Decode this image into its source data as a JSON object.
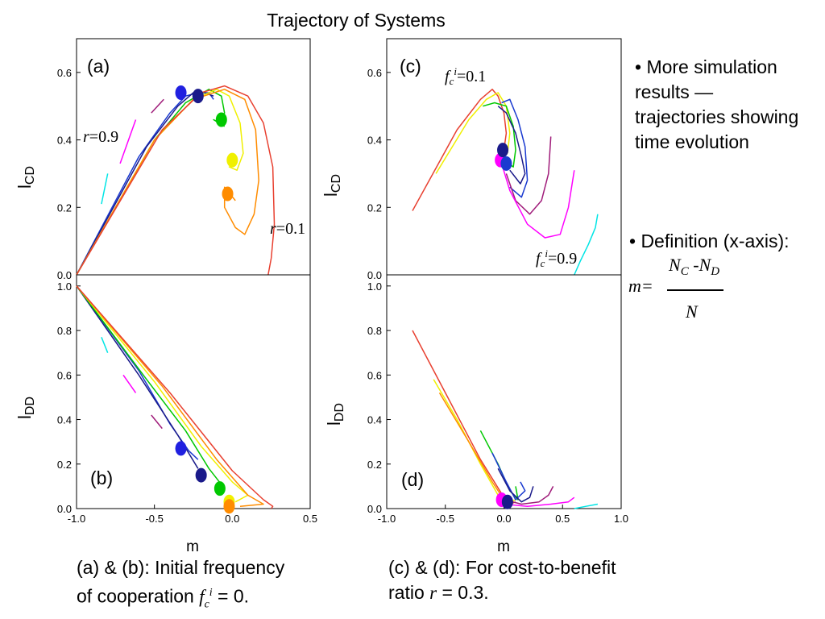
{
  "title": "Trajectory of Systems",
  "bullets": {
    "b1": "• More simulation results — trajectories showing time evolution",
    "b2": "• Definition (x-axis):"
  },
  "formula": {
    "lhs": "m=",
    "numerator_a": "N",
    "numerator_sub_a": "C",
    "numerator_mid": " -N",
    "numerator_sub_b": "D",
    "denominator": "N"
  },
  "captions": {
    "left_line1": "(a) & (b): Initial frequency",
    "left_line2_prefix": "of cooperation ",
    "left_line2_var": "f",
    "left_line2_sub": "c",
    "left_line2_sup": "i",
    "left_line2_suffix": " = 0.",
    "right_line1": "(c) & (d): For cost-to-benefit",
    "right_line2_prefix": "ratio ",
    "right_line2_var": "r",
    "right_line2_suffix": " = 0.3."
  },
  "panel_labels": {
    "a": "(a)",
    "b": "(b)",
    "c": "(c)",
    "d": "(d)"
  },
  "annotations": {
    "r09_var": "r",
    "r09_val": "=0.9",
    "r01_var": "r",
    "r01_val": "=0.1",
    "fc01_var": "f",
    "fc01_sub": "c",
    "fc01_sup": "i",
    "fc01_val": "=0.1",
    "fc09_var": "f",
    "fc09_sub": "c",
    "fc09_sup": "i",
    "fc09_val": "=0.9"
  },
  "axes": {
    "ylabel_top_main": "l",
    "ylabel_top_sub": "CD",
    "ylabel_bottom_main": "l",
    "ylabel_bottom_sub": "DD",
    "xlabel": "m"
  },
  "chart_data": [
    {
      "panel": "a",
      "type": "line",
      "xlim": [
        -1.0,
        0.5
      ],
      "ylim": [
        0.0,
        0.7
      ],
      "yticks": [
        "0.0",
        "0.2",
        "0.4",
        "0.6"
      ],
      "series": [
        {
          "color": "#00e5e5",
          "x": [
            -0.84,
            -0.8
          ],
          "y": [
            0.21,
            0.3
          ]
        },
        {
          "color": "#ff00ff",
          "x": [
            -0.72,
            -0.62
          ],
          "y": [
            0.33,
            0.46
          ]
        },
        {
          "color": "#a01c7a",
          "x": [
            -0.52,
            -0.44
          ],
          "y": [
            0.48,
            0.52
          ]
        },
        {
          "color": "#1a3ad0",
          "x": [
            -1.0,
            -0.6,
            -0.4,
            -0.3,
            -0.22,
            -0.15,
            -0.12
          ],
          "y": [
            0.0,
            0.35,
            0.48,
            0.53,
            0.54,
            0.54,
            0.52
          ]
        },
        {
          "color": "#1a1a8a",
          "x": [
            -1.0,
            -0.55,
            -0.35,
            -0.25,
            -0.18,
            -0.12
          ],
          "y": [
            0.0,
            0.38,
            0.5,
            0.54,
            0.54,
            0.53
          ]
        },
        {
          "color": "#00c800",
          "x": [
            -1.0,
            -0.5,
            -0.3,
            -0.15,
            -0.07,
            -0.05,
            -0.08,
            -0.12,
            -0.05
          ],
          "y": [
            0.0,
            0.4,
            0.51,
            0.55,
            0.53,
            0.48,
            0.45,
            0.46,
            0.44
          ]
        },
        {
          "color": "#f0f000",
          "x": [
            -1.0,
            -0.5,
            -0.25,
            -0.1,
            -0.02,
            0.05,
            0.07,
            0.03,
            -0.02,
            0.03
          ],
          "y": [
            0.0,
            0.4,
            0.52,
            0.55,
            0.53,
            0.45,
            0.36,
            0.31,
            0.32,
            0.31
          ]
        },
        {
          "color": "#ff8c00",
          "x": [
            -1.0,
            -0.5,
            -0.25,
            -0.05,
            0.08,
            0.15,
            0.17,
            0.14,
            0.08,
            0.02,
            -0.05,
            -0.05,
            0.02
          ],
          "y": [
            0.0,
            0.4,
            0.52,
            0.55,
            0.52,
            0.43,
            0.28,
            0.18,
            0.12,
            0.14,
            0.2,
            0.26,
            0.22
          ]
        },
        {
          "color": "#e84030",
          "x": [
            -1.0,
            -0.45,
            -0.2,
            -0.05,
            0.1,
            0.2,
            0.26,
            0.27,
            0.25,
            0.23
          ],
          "y": [
            0.0,
            0.43,
            0.54,
            0.56,
            0.53,
            0.45,
            0.32,
            0.15,
            0.05,
            0.0
          ]
        }
      ],
      "clusters": [
        {
          "color": "#2020e0",
          "x": -0.33,
          "y": 0.54
        },
        {
          "color": "#1a1a8a",
          "x": -0.22,
          "y": 0.53
        },
        {
          "color": "#00c800",
          "x": -0.07,
          "y": 0.46
        },
        {
          "color": "#f0f000",
          "x": 0.0,
          "y": 0.34
        },
        {
          "color": "#ff8c00",
          "x": -0.03,
          "y": 0.24
        }
      ]
    },
    {
      "panel": "b",
      "type": "line",
      "xlim": [
        -1.0,
        0.5
      ],
      "ylim": [
        0.0,
        1.05
      ],
      "xticks": [
        "-1.0",
        "-0.5",
        "0.0",
        "0.5"
      ],
      "yticks": [
        "0.0",
        "0.2",
        "0.4",
        "0.6",
        "0.8",
        "1.0"
      ],
      "series": [
        {
          "color": "#00e5e5",
          "x": [
            -0.84,
            -0.8
          ],
          "y": [
            0.77,
            0.7
          ]
        },
        {
          "color": "#ff00ff",
          "x": [
            -0.7,
            -0.62
          ],
          "y": [
            0.6,
            0.52
          ]
        },
        {
          "color": "#a01c7a",
          "x": [
            -0.52,
            -0.45
          ],
          "y": [
            0.42,
            0.36
          ]
        },
        {
          "color": "#1a3ad0",
          "x": [
            -1.0,
            -0.6,
            -0.4,
            -0.28,
            -0.22
          ],
          "y": [
            1.0,
            0.62,
            0.38,
            0.26,
            0.22
          ]
        },
        {
          "color": "#1a1a8a",
          "x": [
            -1.0,
            -0.6,
            -0.35,
            -0.22
          ],
          "y": [
            1.0,
            0.6,
            0.33,
            0.18
          ]
        },
        {
          "color": "#00c800",
          "x": [
            -1.0,
            -0.55,
            -0.3,
            -0.15,
            -0.05,
            -0.08
          ],
          "y": [
            1.0,
            0.58,
            0.35,
            0.18,
            0.09,
            0.07
          ]
        },
        {
          "color": "#f0f000",
          "x": [
            -1.0,
            -0.5,
            -0.2,
            0.0,
            0.1,
            0.02
          ],
          "y": [
            1.0,
            0.57,
            0.28,
            0.12,
            0.06,
            0.03
          ]
        },
        {
          "color": "#ff8c00",
          "x": [
            -1.0,
            -0.45,
            -0.1,
            0.1,
            0.2,
            0.05
          ],
          "y": [
            1.0,
            0.55,
            0.22,
            0.06,
            0.02,
            0.01
          ]
        },
        {
          "color": "#e84030",
          "x": [
            -1.0,
            -0.4,
            0.0,
            0.2,
            0.26,
            0.25
          ],
          "y": [
            1.0,
            0.52,
            0.17,
            0.04,
            0.01,
            0.0
          ]
        }
      ],
      "clusters": [
        {
          "color": "#2020e0",
          "x": -0.33,
          "y": 0.27
        },
        {
          "color": "#1a1a8a",
          "x": -0.2,
          "y": 0.15
        },
        {
          "color": "#00c800",
          "x": -0.08,
          "y": 0.09
        },
        {
          "color": "#f0f000",
          "x": -0.02,
          "y": 0.03
        },
        {
          "color": "#ff8c00",
          "x": -0.02,
          "y": 0.01
        }
      ]
    },
    {
      "panel": "c",
      "type": "line",
      "xlim": [
        -1.0,
        1.0
      ],
      "ylim": [
        0.0,
        0.7
      ],
      "yticks": [
        "0.0",
        "0.2",
        "0.4",
        "0.6"
      ],
      "series": [
        {
          "color": "#e84030",
          "x": [
            -0.78,
            -0.4,
            -0.2,
            -0.1,
            -0.05,
            0.0,
            0.02,
            0.0
          ],
          "y": [
            0.19,
            0.43,
            0.52,
            0.55,
            0.53,
            0.48,
            0.42,
            0.37
          ]
        },
        {
          "color": "#f0f000",
          "x": [
            -0.58,
            -0.3,
            -0.15,
            -0.05,
            0.02,
            0.05,
            0.03
          ],
          "y": [
            0.3,
            0.46,
            0.52,
            0.54,
            0.5,
            0.42,
            0.36
          ]
        },
        {
          "color": "#00c800",
          "x": [
            -0.18,
            -0.08,
            0.02,
            0.08,
            0.1,
            0.08,
            0.04
          ],
          "y": [
            0.5,
            0.51,
            0.5,
            0.44,
            0.37,
            0.32,
            0.33
          ]
        },
        {
          "color": "#1a3ad0",
          "x": [
            -0.02,
            0.05,
            0.12,
            0.18,
            0.2,
            0.15,
            0.05
          ],
          "y": [
            0.51,
            0.52,
            0.46,
            0.38,
            0.28,
            0.23,
            0.26
          ]
        },
        {
          "color": "#1a1a8a",
          "x": [
            -0.05,
            0.02,
            0.1,
            0.15,
            0.18,
            0.14,
            0.05
          ],
          "y": [
            0.5,
            0.48,
            0.42,
            0.35,
            0.3,
            0.27,
            0.31
          ]
        },
        {
          "color": "#a01c7a",
          "x": [
            0.4,
            0.38,
            0.32,
            0.22,
            0.1,
            0.02
          ],
          "y": [
            0.41,
            0.3,
            0.22,
            0.18,
            0.22,
            0.3
          ]
        },
        {
          "color": "#ff00ff",
          "x": [
            0.6,
            0.55,
            0.48,
            0.35,
            0.2,
            0.05,
            -0.02
          ],
          "y": [
            0.31,
            0.2,
            0.12,
            0.11,
            0.15,
            0.25,
            0.33
          ]
        },
        {
          "color": "#00e5e5",
          "x": [
            0.6,
            0.65,
            0.72,
            0.78,
            0.8
          ],
          "y": [
            0.0,
            0.04,
            0.09,
            0.14,
            0.18
          ]
        }
      ],
      "clusters": [
        {
          "color": "#ff00ff",
          "x": -0.03,
          "y": 0.34
        },
        {
          "color": "#1a1a8a",
          "x": -0.01,
          "y": 0.37
        },
        {
          "color": "#1a3ad0",
          "x": 0.02,
          "y": 0.33
        }
      ]
    },
    {
      "panel": "d",
      "type": "line",
      "xlim": [
        -1.0,
        1.0
      ],
      "ylim": [
        0.0,
        1.05
      ],
      "xticks": [
        "-1.0",
        "-0.5",
        "0.0",
        "0.5",
        "1.0"
      ],
      "yticks": [
        "0.0",
        "0.2",
        "0.4",
        "0.6",
        "0.8",
        "1.0"
      ],
      "series": [
        {
          "color": "#e84030",
          "x": [
            -0.78,
            -0.5,
            -0.2,
            0.0,
            0.05,
            0.1
          ],
          "y": [
            0.8,
            0.52,
            0.22,
            0.05,
            0.02,
            0.03
          ]
        },
        {
          "color": "#f0f000",
          "x": [
            -0.6,
            -0.4,
            -0.2,
            -0.05,
            0.05,
            0.1
          ],
          "y": [
            0.58,
            0.4,
            0.2,
            0.06,
            0.03,
            0.04
          ]
        },
        {
          "color": "#ff8c00",
          "x": [
            -0.55,
            -0.3,
            -0.1,
            0.0,
            0.08
          ],
          "y": [
            0.52,
            0.3,
            0.12,
            0.04,
            0.03
          ]
        },
        {
          "color": "#00c800",
          "x": [
            -0.2,
            -0.05,
            0.05,
            0.12,
            0.1
          ],
          "y": [
            0.35,
            0.2,
            0.08,
            0.04,
            0.1
          ]
        },
        {
          "color": "#1a3ad0",
          "x": [
            -0.1,
            0.02,
            0.1,
            0.18,
            0.14
          ],
          "y": [
            0.25,
            0.12,
            0.04,
            0.08,
            0.12
          ]
        },
        {
          "color": "#1a1a8a",
          "x": [
            -0.05,
            0.05,
            0.15,
            0.22,
            0.25
          ],
          "y": [
            0.18,
            0.08,
            0.03,
            0.05,
            0.1
          ]
        },
        {
          "color": "#a01c7a",
          "x": [
            0.0,
            0.15,
            0.3,
            0.38,
            0.42
          ],
          "y": [
            0.04,
            0.02,
            0.03,
            0.06,
            0.1
          ]
        },
        {
          "color": "#ff00ff",
          "x": [
            0.0,
            0.2,
            0.4,
            0.55,
            0.6
          ],
          "y": [
            0.02,
            0.01,
            0.02,
            0.03,
            0.05
          ]
        },
        {
          "color": "#00e5e5",
          "x": [
            0.6,
            0.7,
            0.8
          ],
          "y": [
            0.0,
            0.01,
            0.02
          ]
        }
      ],
      "clusters": [
        {
          "color": "#ff00ff",
          "x": -0.02,
          "y": 0.04
        },
        {
          "color": "#1a1a8a",
          "x": 0.03,
          "y": 0.03
        }
      ]
    }
  ]
}
